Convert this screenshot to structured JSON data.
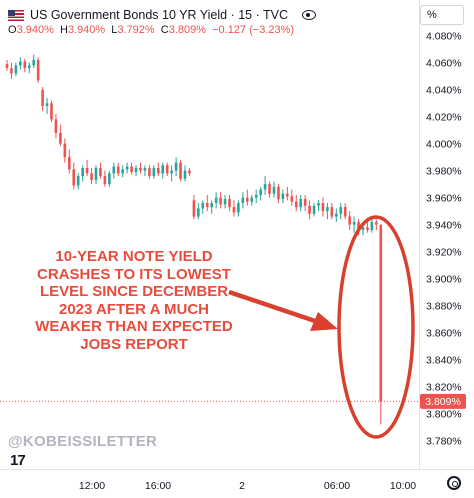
{
  "header": {
    "symbol_title": "US Government Bonds 10 YR Yield · 15 · TVC",
    "open_label": "O",
    "open_value": "3.940%",
    "high_label": "H",
    "high_value": "3.940%",
    "low_label": "L",
    "low_value": "3.792%",
    "close_label": "C",
    "close_value": "3.809%",
    "change": "−0.127 (−3.23%)",
    "unit_button": "%"
  },
  "annotation": "10-YEAR NOTE YIELD\nCRASHES TO ITS LOWEST\nLEVEL SINCE DECEMBER\n2023 AFTER A MUCH\nWEAKER THAN EXPECTED\nJOBS REPORT",
  "watermark": "@KOBEISSILETTER",
  "logo_text": "17",
  "colors": {
    "up": "#26a69a",
    "down": "#ef5350",
    "annotation": "#e74c3c",
    "price_tag": "#ef5350"
  },
  "chart_data": {
    "type": "candlestick",
    "y_unit": "%",
    "ylim": [
      3.77,
      4.085
    ],
    "y_ticks": [
      "4.080%",
      "4.060%",
      "4.040%",
      "4.020%",
      "4.000%",
      "3.980%",
      "3.960%",
      "3.940%",
      "3.920%",
      "3.900%",
      "3.880%",
      "3.860%",
      "3.840%",
      "3.820%",
      "3.800%",
      "3.780%"
    ],
    "x_ticks": [
      "12:00",
      "16:00",
      "2",
      "06:00",
      "10:00"
    ],
    "last_price_label": "3.809%",
    "last_price": 3.809,
    "grid": false,
    "candles": [
      {
        "o": 4.059,
        "h": 4.062,
        "l": 4.054,
        "c": 4.056
      },
      {
        "o": 4.056,
        "h": 4.06,
        "l": 4.048,
        "c": 4.052
      },
      {
        "o": 4.052,
        "h": 4.06,
        "l": 4.05,
        "c": 4.058
      },
      {
        "o": 4.058,
        "h": 4.064,
        "l": 4.055,
        "c": 4.061
      },
      {
        "o": 4.061,
        "h": 4.063,
        "l": 4.053,
        "c": 4.056
      },
      {
        "o": 4.056,
        "h": 4.06,
        "l": 4.052,
        "c": 4.058
      },
      {
        "o": 4.058,
        "h": 4.066,
        "l": 4.056,
        "c": 4.062
      },
      {
        "o": 4.062,
        "h": 4.064,
        "l": 4.045,
        "c": 4.047
      },
      {
        "o": 4.04,
        "h": 4.042,
        "l": 4.024,
        "c": 4.028
      },
      {
        "o": 4.028,
        "h": 4.034,
        "l": 4.022,
        "c": 4.03
      },
      {
        "o": 4.03,
        "h": 4.032,
        "l": 4.016,
        "c": 4.018
      },
      {
        "o": 4.018,
        "h": 4.022,
        "l": 4.004,
        "c": 4.008
      },
      {
        "o": 4.008,
        "h": 4.014,
        "l": 3.998,
        "c": 4.0
      },
      {
        "o": 4.0,
        "h": 4.004,
        "l": 3.986,
        "c": 3.99
      },
      {
        "o": 3.99,
        "h": 3.996,
        "l": 3.978,
        "c": 3.981
      },
      {
        "o": 3.981,
        "h": 3.986,
        "l": 3.966,
        "c": 3.969
      },
      {
        "o": 3.969,
        "h": 3.978,
        "l": 3.966,
        "c": 3.976
      },
      {
        "o": 3.976,
        "h": 3.984,
        "l": 3.972,
        "c": 3.982
      },
      {
        "o": 3.982,
        "h": 3.988,
        "l": 3.976,
        "c": 3.978
      },
      {
        "o": 3.978,
        "h": 3.982,
        "l": 3.97,
        "c": 3.973
      },
      {
        "o": 3.973,
        "h": 3.984,
        "l": 3.97,
        "c": 3.982
      },
      {
        "o": 3.982,
        "h": 3.986,
        "l": 3.974,
        "c": 3.976
      },
      {
        "o": 3.976,
        "h": 3.98,
        "l": 3.968,
        "c": 3.97
      },
      {
        "o": 3.97,
        "h": 3.98,
        "l": 3.968,
        "c": 3.978
      },
      {
        "o": 3.978,
        "h": 3.986,
        "l": 3.974,
        "c": 3.983
      },
      {
        "o": 3.983,
        "h": 3.986,
        "l": 3.976,
        "c": 3.978
      },
      {
        "o": 3.978,
        "h": 3.984,
        "l": 3.975,
        "c": 3.981
      },
      {
        "o": 3.981,
        "h": 3.986,
        "l": 3.978,
        "c": 3.983
      },
      {
        "o": 3.983,
        "h": 3.986,
        "l": 3.977,
        "c": 3.979
      },
      {
        "o": 3.979,
        "h": 3.984,
        "l": 3.976,
        "c": 3.982
      },
      {
        "o": 3.982,
        "h": 3.986,
        "l": 3.978,
        "c": 3.98
      },
      {
        "o": 3.98,
        "h": 3.984,
        "l": 3.976,
        "c": 3.982
      },
      {
        "o": 3.982,
        "h": 3.984,
        "l": 3.974,
        "c": 3.976
      },
      {
        "o": 3.976,
        "h": 3.984,
        "l": 3.974,
        "c": 3.982
      },
      {
        "o": 3.982,
        "h": 3.986,
        "l": 3.976,
        "c": 3.978
      },
      {
        "o": 3.978,
        "h": 3.986,
        "l": 3.974,
        "c": 3.984
      },
      {
        "o": 3.984,
        "h": 3.986,
        "l": 3.976,
        "c": 3.978
      },
      {
        "o": 3.978,
        "h": 3.984,
        "l": 3.972,
        "c": 3.98
      },
      {
        "o": 3.98,
        "h": 3.99,
        "l": 3.976,
        "c": 3.986
      },
      {
        "o": 3.986,
        "h": 3.988,
        "l": 3.972,
        "c": 3.974
      },
      {
        "o": 3.974,
        "h": 3.984,
        "l": 3.972,
        "c": 3.98
      },
      {
        "o": 3.98,
        "h": 3.982,
        "l": 3.976,
        "c": 3.978
      },
      {
        "o": 3.958,
        "h": 3.962,
        "l": 3.944,
        "c": 3.946
      },
      {
        "o": 3.946,
        "h": 3.956,
        "l": 3.944,
        "c": 3.952
      },
      {
        "o": 3.952,
        "h": 3.958,
        "l": 3.948,
        "c": 3.956
      },
      {
        "o": 3.956,
        "h": 3.962,
        "l": 3.95,
        "c": 3.953
      },
      {
        "o": 3.953,
        "h": 3.958,
        "l": 3.948,
        "c": 3.956
      },
      {
        "o": 3.956,
        "h": 3.964,
        "l": 3.952,
        "c": 3.96
      },
      {
        "o": 3.96,
        "h": 3.964,
        "l": 3.952,
        "c": 3.955
      },
      {
        "o": 3.955,
        "h": 3.962,
        "l": 3.952,
        "c": 3.959
      },
      {
        "o": 3.959,
        "h": 3.962,
        "l": 3.95,
        "c": 3.953
      },
      {
        "o": 3.953,
        "h": 3.958,
        "l": 3.946,
        "c": 3.949
      },
      {
        "o": 3.949,
        "h": 3.958,
        "l": 3.946,
        "c": 3.956
      },
      {
        "o": 3.956,
        "h": 3.964,
        "l": 3.952,
        "c": 3.96
      },
      {
        "o": 3.96,
        "h": 3.966,
        "l": 3.954,
        "c": 3.957
      },
      {
        "o": 3.957,
        "h": 3.962,
        "l": 3.954,
        "c": 3.96
      },
      {
        "o": 3.96,
        "h": 3.966,
        "l": 3.956,
        "c": 3.962
      },
      {
        "o": 3.962,
        "h": 3.968,
        "l": 3.958,
        "c": 3.966
      },
      {
        "o": 3.966,
        "h": 3.976,
        "l": 3.962,
        "c": 3.97
      },
      {
        "o": 3.97,
        "h": 3.972,
        "l": 3.96,
        "c": 3.963
      },
      {
        "o": 3.963,
        "h": 3.972,
        "l": 3.96,
        "c": 3.968
      },
      {
        "o": 3.968,
        "h": 3.97,
        "l": 3.956,
        "c": 3.959
      },
      {
        "o": 3.959,
        "h": 3.966,
        "l": 3.956,
        "c": 3.963
      },
      {
        "o": 3.963,
        "h": 3.968,
        "l": 3.958,
        "c": 3.961
      },
      {
        "o": 3.961,
        "h": 3.966,
        "l": 3.954,
        "c": 3.957
      },
      {
        "o": 3.957,
        "h": 3.962,
        "l": 3.95,
        "c": 3.953
      },
      {
        "o": 3.953,
        "h": 3.962,
        "l": 3.95,
        "c": 3.959
      },
      {
        "o": 3.959,
        "h": 3.962,
        "l": 3.95,
        "c": 3.954
      },
      {
        "o": 3.954,
        "h": 3.958,
        "l": 3.944,
        "c": 3.948
      },
      {
        "o": 3.948,
        "h": 3.956,
        "l": 3.946,
        "c": 3.954
      },
      {
        "o": 3.954,
        "h": 3.958,
        "l": 3.95,
        "c": 3.956
      },
      {
        "o": 3.956,
        "h": 3.96,
        "l": 3.946,
        "c": 3.95
      },
      {
        "o": 3.95,
        "h": 3.956,
        "l": 3.944,
        "c": 3.953
      },
      {
        "o": 3.953,
        "h": 3.956,
        "l": 3.944,
        "c": 3.946
      },
      {
        "o": 3.946,
        "h": 3.952,
        "l": 3.942,
        "c": 3.948
      },
      {
        "o": 3.948,
        "h": 3.956,
        "l": 3.944,
        "c": 3.953
      },
      {
        "o": 3.953,
        "h": 3.956,
        "l": 3.944,
        "c": 3.946
      },
      {
        "o": 3.946,
        "h": 3.95,
        "l": 3.936,
        "c": 3.94
      },
      {
        "o": 3.94,
        "h": 3.946,
        "l": 3.934,
        "c": 3.942
      },
      {
        "o": 3.942,
        "h": 3.944,
        "l": 3.932,
        "c": 3.936
      },
      {
        "o": 3.936,
        "h": 3.942,
        "l": 3.932,
        "c": 3.938
      },
      {
        "o": 3.938,
        "h": 3.942,
        "l": 3.934,
        "c": 3.936
      },
      {
        "o": 3.936,
        "h": 3.946,
        "l": 3.934,
        "c": 3.942
      },
      {
        "o": 3.942,
        "h": 3.944,
        "l": 3.936,
        "c": 3.94
      },
      {
        "o": 3.94,
        "h": 3.94,
        "l": 3.792,
        "c": 3.809
      }
    ]
  }
}
